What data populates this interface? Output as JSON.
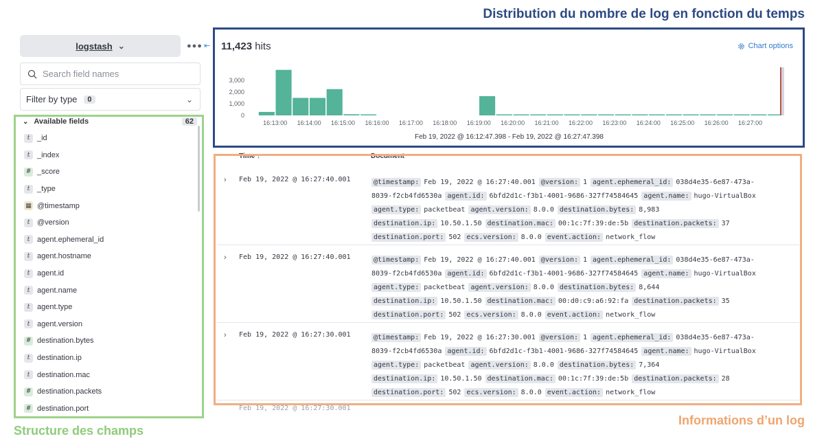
{
  "annotations": {
    "histogram": "Distribution du nombre de log en fonction du temps",
    "fields": "Structure des champs",
    "document": "Informations d’un log"
  },
  "sidebar": {
    "index_pattern": "logstash",
    "search_placeholder": "Search field names",
    "filter_label": "Filter by type",
    "filter_count": "0",
    "available_label": "Available fields",
    "available_count": "62",
    "fields": [
      {
        "type": "t",
        "name": "_id"
      },
      {
        "type": "t",
        "name": "_index"
      },
      {
        "type": "#",
        "name": "_score"
      },
      {
        "type": "t",
        "name": "_type"
      },
      {
        "type": "date",
        "name": "@timestamp"
      },
      {
        "type": "t",
        "name": "@version"
      },
      {
        "type": "t",
        "name": "agent.ephemeral_id"
      },
      {
        "type": "t",
        "name": "agent.hostname"
      },
      {
        "type": "t",
        "name": "agent.id"
      },
      {
        "type": "t",
        "name": "agent.name"
      },
      {
        "type": "t",
        "name": "agent.type"
      },
      {
        "type": "t",
        "name": "agent.version"
      },
      {
        "type": "#",
        "name": "destination.bytes"
      },
      {
        "type": "t",
        "name": "destination.ip"
      },
      {
        "type": "t",
        "name": "destination.mac"
      },
      {
        "type": "#",
        "name": "destination.packets"
      },
      {
        "type": "#",
        "name": "destination.port"
      }
    ]
  },
  "histogram": {
    "hits_count": "11,423",
    "hits_label": "hits",
    "chart_options_label": "Chart options",
    "range_label": "Feb 19, 2022 @ 16:12:47.398 - Feb 19, 2022 @ 16:27:47.398"
  },
  "chart_data": {
    "type": "bar",
    "title": "",
    "xlabel": "",
    "ylabel": "",
    "ylim": [
      0,
      4000
    ],
    "yticks": [
      "3,000",
      "2,000",
      "1,000",
      "0"
    ],
    "ytick_values": [
      3000,
      2000,
      1000,
      0
    ],
    "xticks": [
      "16:13:00",
      "16:14:00",
      "16:15:00",
      "16:16:00",
      "16:17:00",
      "16:18:00",
      "16:19:00",
      "16:20:00",
      "16:21:00",
      "16:22:00",
      "16:23:00",
      "16:24:00",
      "16:25:00",
      "16:26:00",
      "16:27:00"
    ],
    "categories": [
      "16:12:30",
      "16:13:00",
      "16:13:30",
      "16:14:00",
      "16:14:30",
      "16:15:00",
      "16:15:30",
      "16:16:00",
      "16:16:30",
      "16:17:00",
      "16:17:30",
      "16:18:00",
      "16:18:30",
      "16:19:00",
      "16:19:30",
      "16:20:00",
      "16:20:30",
      "16:21:00",
      "16:21:30",
      "16:22:00",
      "16:22:30",
      "16:23:00",
      "16:23:30",
      "16:24:00",
      "16:24:30",
      "16:25:00",
      "16:25:30",
      "16:26:00",
      "16:26:30",
      "16:27:00",
      "16:27:30"
    ],
    "values": [
      300,
      3900,
      1500,
      1500,
      2250,
      100,
      80,
      0,
      0,
      0,
      0,
      0,
      0,
      1650,
      60,
      50,
      50,
      50,
      50,
      50,
      50,
      50,
      50,
      50,
      50,
      50,
      50,
      50,
      50,
      50,
      50
    ],
    "color": "#54b399",
    "now_marker_color": "#bd271e",
    "grid": false
  },
  "table": {
    "col_time": "Time",
    "col_doc": "Document",
    "rows": [
      {
        "time": "Feb 19, 2022 @ 16:27:40.001",
        "lines": [
          [
            [
              "@timestamp:",
              "Feb 19, 2022 @ 16:27:40.001"
            ],
            [
              "@version:",
              "1"
            ],
            [
              "agent.ephemeral_id:",
              "038d4e35-6e87-473a-"
            ]
          ],
          [
            [
              "",
              "8039-f2cb4fd6530a"
            ],
            [
              "agent.id:",
              "6bfd2d1c-f3b1-4001-9686-327f74584645"
            ],
            [
              "agent.name:",
              "hugo-VirtualBox"
            ]
          ],
          [
            [
              "agent.type:",
              "packetbeat"
            ],
            [
              "agent.version:",
              "8.0.0"
            ],
            [
              "destination.bytes:",
              "8,983"
            ]
          ],
          [
            [
              "destination.ip:",
              "10.50.1.50"
            ],
            [
              "destination.mac:",
              "00:1c:7f:39:de:5b"
            ],
            [
              "destination.packets:",
              "37"
            ]
          ],
          [
            [
              "destination.port:",
              "502"
            ],
            [
              "ecs.version:",
              "8.0.0"
            ],
            [
              "event.action:",
              "network_flow"
            ]
          ]
        ]
      },
      {
        "time": "Feb 19, 2022 @ 16:27:40.001",
        "lines": [
          [
            [
              "@timestamp:",
              "Feb 19, 2022 @ 16:27:40.001"
            ],
            [
              "@version:",
              "1"
            ],
            [
              "agent.ephemeral_id:",
              "038d4e35-6e87-473a-"
            ]
          ],
          [
            [
              "",
              "8039-f2cb4fd6530a"
            ],
            [
              "agent.id:",
              "6bfd2d1c-f3b1-4001-9686-327f74584645"
            ],
            [
              "agent.name:",
              "hugo-VirtualBox"
            ]
          ],
          [
            [
              "agent.type:",
              "packetbeat"
            ],
            [
              "agent.version:",
              "8.0.0"
            ],
            [
              "destination.bytes:",
              "8,644"
            ]
          ],
          [
            [
              "destination.ip:",
              "10.50.1.50"
            ],
            [
              "destination.mac:",
              "00:d0:c9:a6:92:fa"
            ],
            [
              "destination.packets:",
              "35"
            ]
          ],
          [
            [
              "destination.port:",
              "502"
            ],
            [
              "ecs.version:",
              "8.0.0"
            ],
            [
              "event.action:",
              "network_flow"
            ]
          ]
        ]
      },
      {
        "time": "Feb 19, 2022 @ 16:27:30.001",
        "lines": [
          [
            [
              "@timestamp:",
              "Feb 19, 2022 @ 16:27:30.001"
            ],
            [
              "@version:",
              "1"
            ],
            [
              "agent.ephemeral_id:",
              "038d4e35-6e87-473a-"
            ]
          ],
          [
            [
              "",
              "8039-f2cb4fd6530a"
            ],
            [
              "agent.id:",
              "6bfd2d1c-f3b1-4001-9686-327f74584645"
            ],
            [
              "agent.name:",
              "hugo-VirtualBox"
            ]
          ],
          [
            [
              "agent.type:",
              "packetbeat"
            ],
            [
              "agent.version:",
              "8.0.0"
            ],
            [
              "destination.bytes:",
              "7,364"
            ]
          ],
          [
            [
              "destination.ip:",
              "10.50.1.50"
            ],
            [
              "destination.mac:",
              "00:1c:7f:39:de:5b"
            ],
            [
              "destination.packets:",
              "28"
            ]
          ],
          [
            [
              "destination.port:",
              "502"
            ],
            [
              "ecs.version:",
              "8.0.0"
            ],
            [
              "event.action:",
              "network_flow"
            ]
          ]
        ]
      }
    ],
    "partial_row_time": "Feb 19, 2022 @ 16:27:30.001"
  }
}
